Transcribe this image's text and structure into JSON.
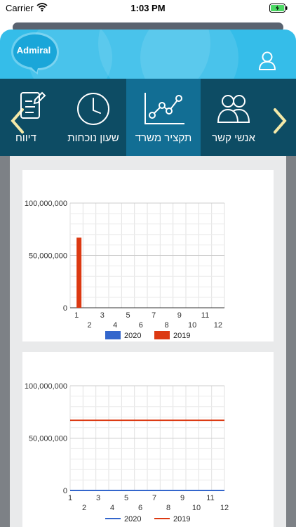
{
  "status_bar": {
    "carrier": "Carrier",
    "time": "1:03 PM"
  },
  "header": {
    "logo_text": "Admiral"
  },
  "nav": {
    "items": [
      {
        "label": "אנשי קשר",
        "icon": "contacts-icon"
      },
      {
        "label": "תקציר משרד",
        "icon": "chart-icon",
        "active": true
      },
      {
        "label": "שעון נוכחות",
        "icon": "clock-icon"
      },
      {
        "label": "דיווח",
        "icon": "report-icon"
      }
    ]
  },
  "colors": {
    "series_2020": "#3366cc",
    "series_2019": "#dc3912"
  },
  "chart_data": [
    {
      "type": "bar",
      "x_ticks": [
        "1",
        "2",
        "3",
        "4",
        "5",
        "6",
        "7",
        "8",
        "9",
        "10",
        "11",
        "12"
      ],
      "y_ticks": [
        "0",
        "50,000,000",
        "100,000,000"
      ],
      "ylim": [
        0,
        100000000
      ],
      "categories": [
        1,
        2,
        3,
        4,
        5,
        6,
        7,
        8,
        9,
        10,
        11,
        12
      ],
      "series": [
        {
          "name": "2020",
          "values": [
            0,
            0,
            0,
            0,
            0,
            0,
            0,
            0,
            0,
            0,
            0,
            0
          ]
        },
        {
          "name": "2019",
          "values": [
            67000000,
            0,
            0,
            0,
            0,
            0,
            0,
            0,
            0,
            0,
            0,
            0
          ]
        }
      ],
      "legend": "bottom"
    },
    {
      "type": "line",
      "x_ticks": [
        "1",
        "2",
        "3",
        "4",
        "5",
        "6",
        "7",
        "8",
        "9",
        "10",
        "11",
        "12"
      ],
      "y_ticks": [
        "0",
        "50,000,000",
        "100,000,000"
      ],
      "ylim": [
        0,
        100000000
      ],
      "categories": [
        1,
        2,
        3,
        4,
        5,
        6,
        7,
        8,
        9,
        10,
        11,
        12
      ],
      "series": [
        {
          "name": "2020",
          "values": [
            0,
            0,
            0,
            0,
            0,
            0,
            0,
            0,
            0,
            0,
            0,
            0
          ]
        },
        {
          "name": "2019",
          "values": [
            67000000,
            67000000,
            67000000,
            67000000,
            67000000,
            67000000,
            67000000,
            67000000,
            67000000,
            67000000,
            67000000,
            67000000
          ]
        }
      ],
      "legend": "bottom"
    }
  ]
}
